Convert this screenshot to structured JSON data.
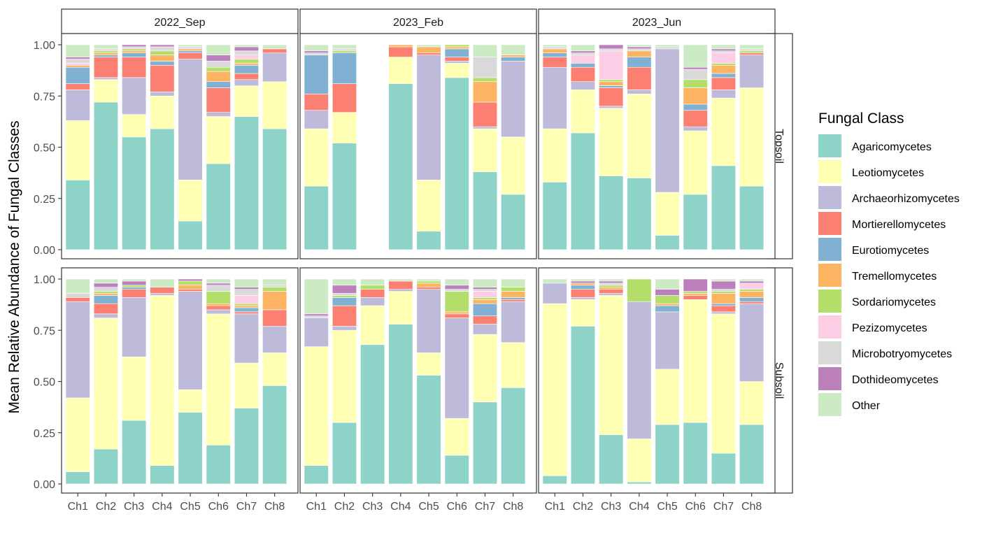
{
  "chart_data": {
    "type": "bar",
    "stacked": true,
    "ylabel": "Mean Relative Abundance of Fungal Classes",
    "xlabel": "",
    "ylim": [
      0,
      1
    ],
    "yticks": [
      0,
      0.25,
      0.5,
      0.75,
      1
    ],
    "ytick_labels": [
      "0.00",
      "0.25",
      "0.50",
      "0.75",
      "1.00"
    ],
    "categories": [
      "Ch1",
      "Ch2",
      "Ch3",
      "Ch4",
      "Ch5",
      "Ch6",
      "Ch7",
      "Ch8"
    ],
    "facet_columns": [
      "2022_Sep",
      "2023_Feb",
      "2023_Jun"
    ],
    "facet_rows": [
      "Topsoil",
      "Subsoil"
    ],
    "legend": {
      "title": "Fungal Class",
      "position": "right",
      "classes": [
        {
          "name": "Agaricomycetes",
          "color": "#8dd3c7"
        },
        {
          "name": "Leotiomycetes",
          "color": "#ffffb3"
        },
        {
          "name": "Archaeorhizomycetes",
          "color": "#bebada"
        },
        {
          "name": "Mortierellomycetes",
          "color": "#fb8072"
        },
        {
          "name": "Eurotiomycetes",
          "color": "#80b1d3"
        },
        {
          "name": "Tremellomycetes",
          "color": "#fdb462"
        },
        {
          "name": "Sordariomycetes",
          "color": "#b3de69"
        },
        {
          "name": "Pezizomycetes",
          "color": "#fccde5"
        },
        {
          "name": "Microbotryomycetes",
          "color": "#d9d9d9"
        },
        {
          "name": "Dothideomycetes",
          "color": "#bc80bd"
        },
        {
          "name": "Other",
          "color": "#ccebc5"
        }
      ]
    },
    "panels": [
      {
        "column": "2022_Sep",
        "row": "Topsoil",
        "bars": [
          [
            0.34,
            0.29,
            0.15,
            0.03,
            0.08,
            0.01,
            0.0,
            0.01,
            0.02,
            0.01,
            0.06
          ],
          [
            0.72,
            0.11,
            0.01,
            0.1,
            0.01,
            0.01,
            0.01,
            0.0,
            0.01,
            0.0,
            0.02
          ],
          [
            0.55,
            0.11,
            0.18,
            0.1,
            0.02,
            0.01,
            0.01,
            0.0,
            0.01,
            0.01,
            0.0
          ],
          [
            0.59,
            0.16,
            0.02,
            0.13,
            0.02,
            0.03,
            0.02,
            0.0,
            0.02,
            0.01,
            0.0
          ],
          [
            0.14,
            0.2,
            0.59,
            0.03,
            0.01,
            0.01,
            0.0,
            0.0,
            0.01,
            0.0,
            0.01
          ],
          [
            0.42,
            0.23,
            0.02,
            0.12,
            0.03,
            0.05,
            0.02,
            0.0,
            0.03,
            0.03,
            0.05
          ],
          [
            0.65,
            0.15,
            0.03,
            0.03,
            0.04,
            0.01,
            0.02,
            0.02,
            0.02,
            0.02,
            0.01
          ],
          [
            0.59,
            0.23,
            0.14,
            0.02,
            0.0,
            0.0,
            0.0,
            0.0,
            0.0,
            0.0,
            0.02
          ]
        ]
      },
      {
        "column": "2023_Feb",
        "row": "Topsoil",
        "bars": [
          [
            0.31,
            0.28,
            0.09,
            0.08,
            0.19,
            0.0,
            0.0,
            0.0,
            0.01,
            0.01,
            0.03
          ],
          [
            0.52,
            0.15,
            0.0,
            0.14,
            0.15,
            0.0,
            0.01,
            0.0,
            0.01,
            0.0,
            0.02
          ],
          [
            0,
            0,
            0,
            0,
            0,
            0,
            0,
            0,
            0,
            0,
            0
          ],
          [
            0.81,
            0.13,
            0.0,
            0.05,
            0.0,
            0.01,
            0.0,
            0.0,
            0.0,
            0.0,
            0.0
          ],
          [
            0.09,
            0.25,
            0.61,
            0.01,
            0.0,
            0.03,
            0.0,
            0.0,
            0.0,
            0.0,
            0.01
          ],
          [
            0.84,
            0.07,
            0.01,
            0.02,
            0.04,
            0.01,
            0.01,
            0.0,
            0.0,
            0.0,
            0.0
          ],
          [
            0.38,
            0.21,
            0.01,
            0.12,
            0.0,
            0.1,
            0.02,
            0.0,
            0.1,
            0.0,
            0.06
          ],
          [
            0.27,
            0.28,
            0.37,
            0.0,
            0.02,
            0.01,
            0.0,
            0.0,
            0.0,
            0.0,
            0.05
          ]
        ]
      },
      {
        "column": "2023_Jun",
        "row": "Topsoil",
        "bars": [
          [
            0.33,
            0.26,
            0.3,
            0.05,
            0.02,
            0.02,
            0.0,
            0.0,
            0.01,
            0.0,
            0.01
          ],
          [
            0.57,
            0.21,
            0.04,
            0.07,
            0.02,
            0.0,
            0.0,
            0.04,
            0.01,
            0.01,
            0.03
          ],
          [
            0.36,
            0.33,
            0.01,
            0.09,
            0.01,
            0.02,
            0.01,
            0.14,
            0.01,
            0.02,
            0.0
          ],
          [
            0.35,
            0.41,
            0.02,
            0.11,
            0.05,
            0.03,
            0.0,
            0.0,
            0.01,
            0.01,
            0.01
          ],
          [
            0.07,
            0.21,
            0.7,
            0.0,
            0.0,
            0.0,
            0.0,
            0.0,
            0.01,
            0.0,
            0.01
          ],
          [
            0.27,
            0.31,
            0.02,
            0.08,
            0.03,
            0.08,
            0.04,
            0.0,
            0.05,
            0.01,
            0.11
          ],
          [
            0.41,
            0.33,
            0.04,
            0.06,
            0.02,
            0.04,
            0.01,
            0.05,
            0.01,
            0.01,
            0.02
          ],
          [
            0.31,
            0.48,
            0.16,
            0.01,
            0.0,
            0.0,
            0.01,
            0.0,
            0.01,
            0.0,
            0.02
          ]
        ]
      },
      {
        "column": "2022_Sep",
        "row": "Subsoil",
        "bars": [
          [
            0.06,
            0.36,
            0.47,
            0.02,
            0.0,
            0.0,
            0.0,
            0.0,
            0.02,
            0.0,
            0.07
          ],
          [
            0.17,
            0.64,
            0.02,
            0.05,
            0.04,
            0.01,
            0.01,
            0.0,
            0.02,
            0.02,
            0.02
          ],
          [
            0.31,
            0.31,
            0.29,
            0.04,
            0.01,
            0.0,
            0.01,
            0.0,
            0.0,
            0.02,
            0.01
          ],
          [
            0.09,
            0.83,
            0.01,
            0.03,
            0.0,
            0.0,
            0.0,
            0.0,
            0.0,
            0.0,
            0.04
          ],
          [
            0.35,
            0.11,
            0.48,
            0.01,
            0.0,
            0.02,
            0.02,
            0.0,
            0.0,
            0.01,
            0.0
          ],
          [
            0.19,
            0.64,
            0.02,
            0.02,
            0.0,
            0.01,
            0.06,
            0.0,
            0.03,
            0.01,
            0.02
          ],
          [
            0.37,
            0.22,
            0.24,
            0.01,
            0.02,
            0.01,
            0.01,
            0.04,
            0.03,
            0.01,
            0.04
          ],
          [
            0.48,
            0.16,
            0.13,
            0.08,
            0.0,
            0.09,
            0.02,
            0.0,
            0.01,
            0.0,
            0.03
          ]
        ]
      },
      {
        "column": "2023_Feb",
        "row": "Subsoil",
        "bars": [
          [
            0.09,
            0.58,
            0.14,
            0.0,
            0.0,
            0.0,
            0.0,
            0.0,
            0.01,
            0.01,
            0.17
          ],
          [
            0.3,
            0.45,
            0.02,
            0.1,
            0.04,
            0.0,
            0.01,
            0.0,
            0.01,
            0.04,
            0.03
          ],
          [
            0.68,
            0.19,
            0.04,
            0.04,
            0.0,
            0.0,
            0.02,
            0.0,
            0.0,
            0.0,
            0.03
          ],
          [
            0.78,
            0.16,
            0.01,
            0.04,
            0.0,
            0.0,
            0.0,
            0.0,
            0.0,
            0.0,
            0.01
          ],
          [
            0.53,
            0.11,
            0.31,
            0.01,
            0.0,
            0.02,
            0.01,
            0.0,
            0.0,
            0.0,
            0.01
          ],
          [
            0.14,
            0.18,
            0.49,
            0.02,
            0.0,
            0.01,
            0.1,
            0.0,
            0.01,
            0.02,
            0.03
          ],
          [
            0.4,
            0.33,
            0.05,
            0.04,
            0.06,
            0.02,
            0.01,
            0.03,
            0.01,
            0.01,
            0.04
          ],
          [
            0.47,
            0.22,
            0.2,
            0.01,
            0.01,
            0.03,
            0.02,
            0.0,
            0.0,
            0.0,
            0.04
          ]
        ]
      },
      {
        "column": "2023_Jun",
        "row": "Subsoil",
        "bars": [
          [
            0.04,
            0.84,
            0.1,
            0.0,
            0.0,
            0.0,
            0.0,
            0.0,
            0.0,
            0.0,
            0.02
          ],
          [
            0.77,
            0.13,
            0.01,
            0.04,
            0.02,
            0.01,
            0.0,
            0.0,
            0.0,
            0.01,
            0.01
          ],
          [
            0.24,
            0.68,
            0.01,
            0.02,
            0.0,
            0.01,
            0.01,
            0.0,
            0.01,
            0.01,
            0.01
          ],
          [
            0.01,
            0.21,
            0.67,
            0.0,
            0.0,
            0.0,
            0.11,
            0.0,
            0.0,
            0.0,
            0.0
          ],
          [
            0.29,
            0.27,
            0.28,
            0.0,
            0.03,
            0.01,
            0.04,
            0.0,
            0.0,
            0.03,
            0.05
          ],
          [
            0.3,
            0.6,
            0.0,
            0.02,
            0.0,
            0.01,
            0.01,
            0.0,
            0.0,
            0.06,
            0.0
          ],
          [
            0.15,
            0.68,
            0.01,
            0.03,
            0.01,
            0.05,
            0.01,
            0.0,
            0.01,
            0.04,
            0.01
          ],
          [
            0.29,
            0.21,
            0.38,
            0.01,
            0.02,
            0.03,
            0.01,
            0.03,
            0.0,
            0.01,
            0.01
          ]
        ]
      }
    ]
  }
}
